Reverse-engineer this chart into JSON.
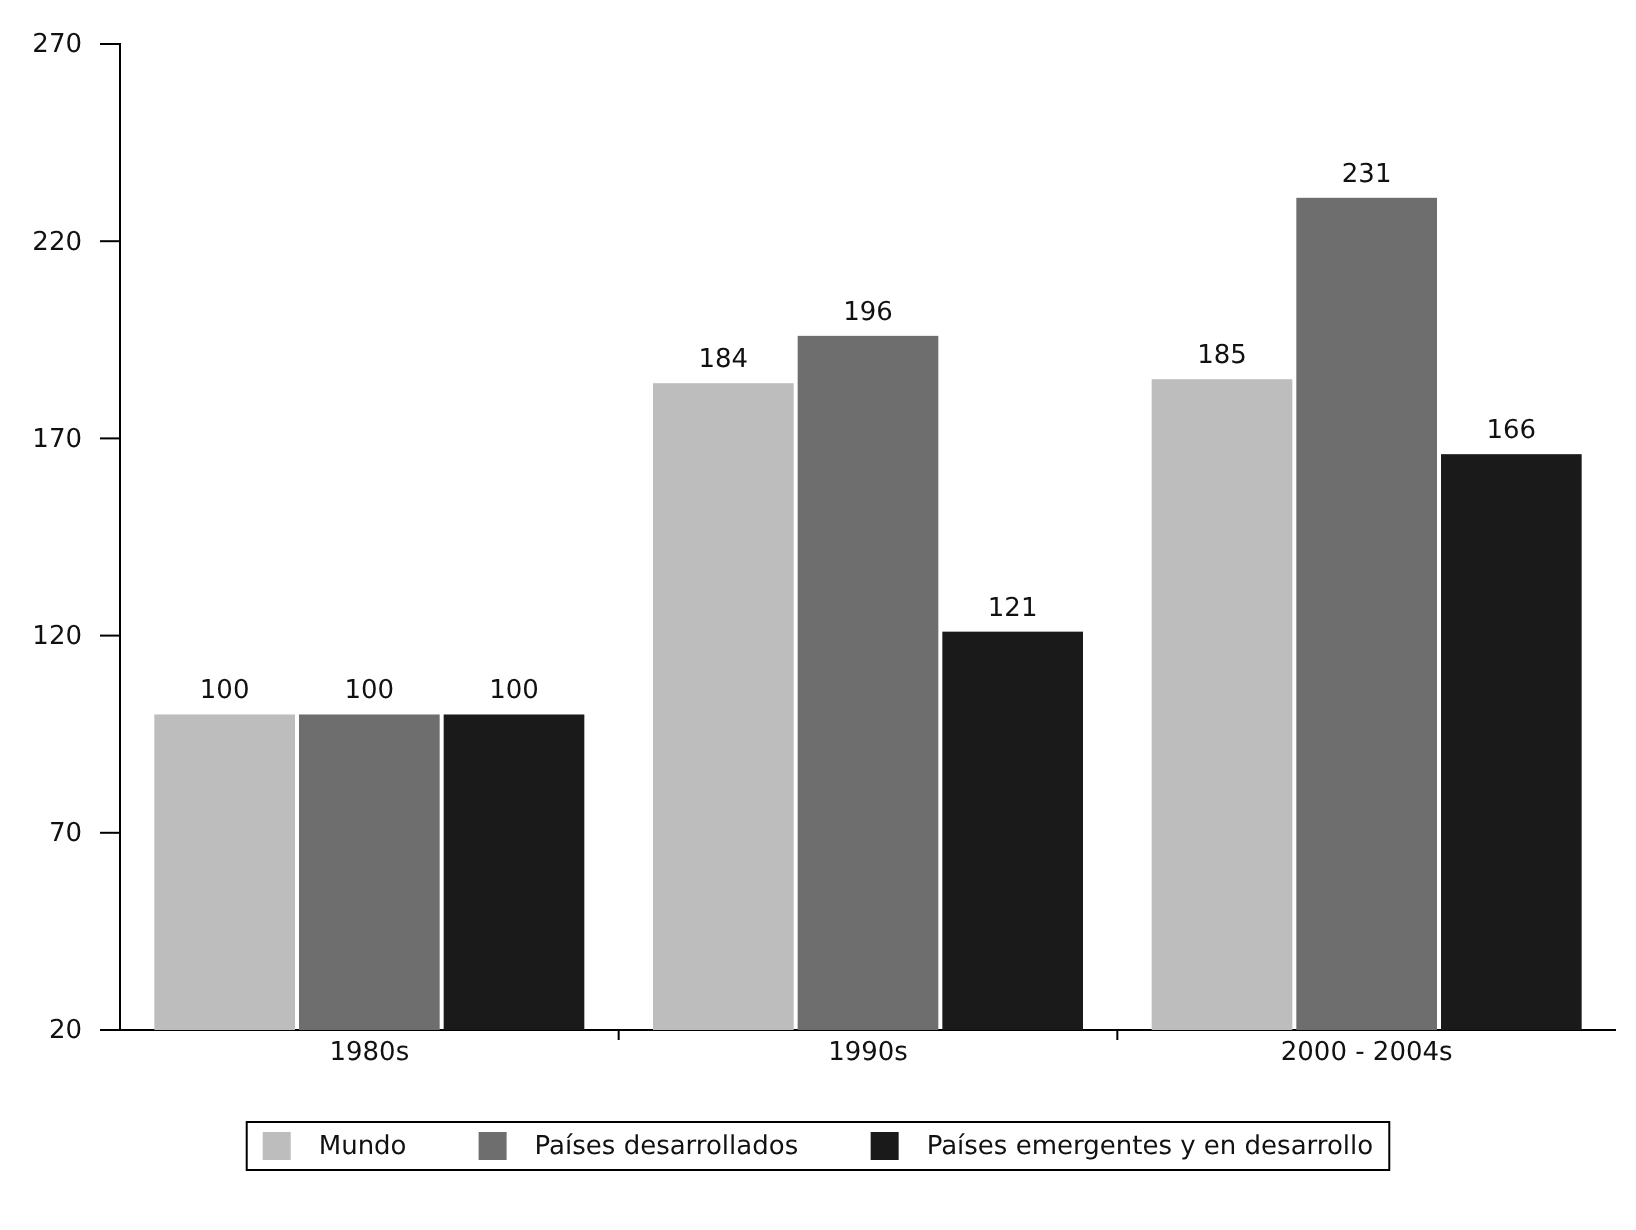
{
  "chart_data": {
    "type": "bar",
    "categories": [
      "1980s",
      "1990s",
      "2000 - 2004s"
    ],
    "series": [
      {
        "name": "Mundo",
        "color": "#bdbdbd",
        "values": [
          100,
          184,
          185
        ]
      },
      {
        "name": "Países desarrollados",
        "color": "#6e6e6e",
        "values": [
          100,
          196,
          231
        ]
      },
      {
        "name": "Países emergentes y en desarrollo",
        "color": "#1a1a1a",
        "values": [
          100,
          121,
          166
        ]
      }
    ],
    "ylim": [
      20,
      270
    ],
    "yticks": [
      20,
      70,
      120,
      170,
      220,
      270
    ],
    "data_labels": true,
    "legend": "bottom",
    "grid": false
  }
}
